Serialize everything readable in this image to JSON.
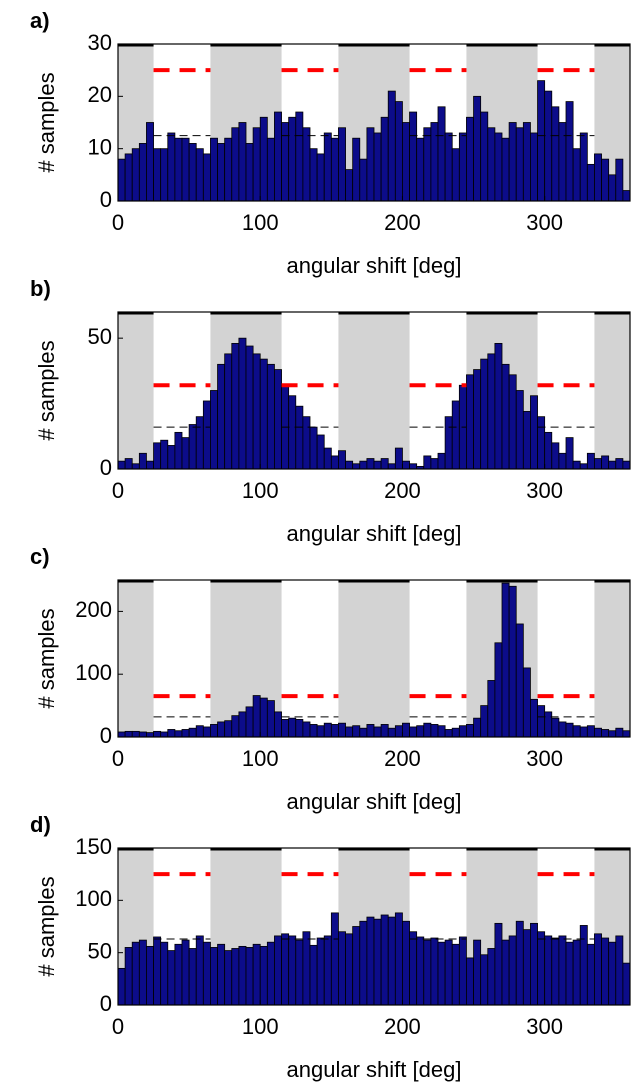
{
  "chart_data": [
    {
      "type": "histogram",
      "label": "a)",
      "xlabel": "angular shift [deg]",
      "ylabel": "# samples",
      "color": "#0c0c8a",
      "shade_color": "#d3d3d3",
      "bins": [
        0,
        5,
        10,
        15,
        20,
        25,
        30,
        35,
        40,
        45,
        50,
        55,
        60,
        65,
        70,
        75,
        80,
        85,
        90,
        95,
        100,
        105,
        110,
        115,
        120,
        125,
        130,
        135,
        140,
        145,
        150,
        155,
        160,
        165,
        170,
        175,
        180,
        185,
        190,
        195,
        200,
        205,
        210,
        215,
        220,
        225,
        230,
        235,
        240,
        245,
        250,
        255,
        260,
        265,
        270,
        275,
        280,
        285,
        290,
        295,
        300,
        305,
        310,
        315,
        320,
        325,
        330,
        335,
        340,
        345,
        350,
        355,
        360
      ],
      "values": [
        8,
        9,
        10,
        11,
        15,
        10,
        10,
        13,
        12,
        12,
        11,
        10,
        9,
        12,
        11,
        12,
        14,
        15,
        11,
        14,
        16,
        12,
        17,
        15,
        16,
        17,
        14,
        10,
        9,
        13,
        12,
        14,
        6,
        12,
        8,
        14,
        13,
        16,
        21,
        19,
        15,
        17,
        12,
        14,
        15,
        18,
        13,
        10,
        13,
        16,
        20,
        17,
        14,
        13,
        12,
        15,
        14,
        15,
        13,
        23,
        21,
        18,
        15,
        19,
        10,
        13,
        7,
        9,
        8,
        5,
        8,
        2
      ],
      "xlim": [
        0,
        360
      ],
      "ylim": [
        0,
        30
      ],
      "xticks": [
        0,
        100,
        200,
        300
      ],
      "yticks": [
        0,
        10,
        20,
        30
      ],
      "shaded_ranges": [
        [
          0,
          25
        ],
        [
          65,
          115
        ],
        [
          155,
          205
        ],
        [
          245,
          295
        ],
        [
          335,
          360
        ]
      ],
      "reference_lines": [
        {
          "value": 25,
          "color": "#ff0000"
        },
        {
          "value": 12.5,
          "color": "#000000"
        }
      ]
    },
    {
      "type": "histogram",
      "label": "b)",
      "xlabel": "angular shift [deg]",
      "ylabel": "# samples",
      "color": "#0c0c8a",
      "shade_color": "#d3d3d3",
      "bins": [
        0,
        5,
        10,
        15,
        20,
        25,
        30,
        35,
        40,
        45,
        50,
        55,
        60,
        65,
        70,
        75,
        80,
        85,
        90,
        95,
        100,
        105,
        110,
        115,
        120,
        125,
        130,
        135,
        140,
        145,
        150,
        155,
        160,
        165,
        170,
        175,
        180,
        185,
        190,
        195,
        200,
        205,
        210,
        215,
        220,
        225,
        230,
        235,
        240,
        245,
        250,
        255,
        260,
        265,
        270,
        275,
        280,
        285,
        290,
        295,
        300,
        305,
        310,
        315,
        320,
        325,
        330,
        335,
        340,
        345,
        350,
        355,
        360
      ],
      "values": [
        3,
        4,
        2,
        6,
        3,
        10,
        11,
        9,
        14,
        12,
        17,
        20,
        26,
        30,
        40,
        44,
        48,
        50,
        47,
        44,
        42,
        40,
        38,
        32,
        28,
        24,
        20,
        16,
        13,
        8,
        5,
        7,
        3,
        2,
        3,
        4,
        3,
        4,
        2,
        8,
        3,
        2,
        1,
        5,
        4,
        6,
        20,
        26,
        32,
        36,
        38,
        42,
        44,
        48,
        40,
        36,
        30,
        22,
        28,
        20,
        14,
        10,
        6,
        12,
        3,
        2,
        6,
        4,
        5,
        3,
        4,
        3
      ],
      "xlim": [
        0,
        360
      ],
      "ylim": [
        0,
        60
      ],
      "xticks": [
        0,
        100,
        200,
        300
      ],
      "yticks": [
        0,
        50
      ],
      "shaded_ranges": [
        [
          0,
          25
        ],
        [
          65,
          115
        ],
        [
          155,
          205
        ],
        [
          245,
          295
        ],
        [
          335,
          360
        ]
      ],
      "reference_lines": [
        {
          "value": 32,
          "color": "#ff0000"
        },
        {
          "value": 16,
          "color": "#000000"
        }
      ]
    },
    {
      "type": "histogram",
      "label": "c)",
      "xlabel": "angular shift [deg]",
      "ylabel": "# samples",
      "color": "#0c0c8a",
      "shade_color": "#d3d3d3",
      "bins": [
        0,
        5,
        10,
        15,
        20,
        25,
        30,
        35,
        40,
        45,
        50,
        55,
        60,
        65,
        70,
        75,
        80,
        85,
        90,
        95,
        100,
        105,
        110,
        115,
        120,
        125,
        130,
        135,
        140,
        145,
        150,
        155,
        160,
        165,
        170,
        175,
        180,
        185,
        190,
        195,
        200,
        205,
        210,
        215,
        220,
        225,
        230,
        235,
        240,
        245,
        250,
        255,
        260,
        265,
        270,
        275,
        280,
        285,
        290,
        295,
        300,
        305,
        310,
        315,
        320,
        325,
        330,
        335,
        340,
        345,
        350,
        355,
        360
      ],
      "values": [
        8,
        9,
        9,
        8,
        7,
        9,
        8,
        12,
        10,
        12,
        14,
        18,
        16,
        20,
        24,
        26,
        34,
        40,
        48,
        66,
        62,
        58,
        40,
        28,
        30,
        28,
        24,
        20,
        18,
        22,
        20,
        22,
        16,
        18,
        14,
        20,
        16,
        20,
        14,
        18,
        22,
        16,
        18,
        22,
        20,
        18,
        12,
        14,
        18,
        20,
        30,
        50,
        90,
        150,
        245,
        240,
        180,
        110,
        60,
        50,
        40,
        30,
        24,
        22,
        18,
        16,
        18,
        14,
        12,
        10,
        14,
        10
      ],
      "xlim": [
        0,
        360
      ],
      "ylim": [
        0,
        250
      ],
      "xticks": [
        0,
        100,
        200,
        300
      ],
      "yticks": [
        0,
        100,
        200
      ],
      "shaded_ranges": [
        [
          0,
          25
        ],
        [
          65,
          115
        ],
        [
          155,
          205
        ],
        [
          245,
          295
        ],
        [
          335,
          360
        ]
      ],
      "reference_lines": [
        {
          "value": 65,
          "color": "#ff0000"
        },
        {
          "value": 32,
          "color": "#000000"
        }
      ]
    },
    {
      "type": "histogram",
      "label": "d)",
      "xlabel": "angular shift [deg]",
      "ylabel": "# samples",
      "color": "#0c0c8a",
      "shade_color": "#d3d3d3",
      "bins": [
        0,
        5,
        10,
        15,
        20,
        25,
        30,
        35,
        40,
        45,
        50,
        55,
        60,
        65,
        70,
        75,
        80,
        85,
        90,
        95,
        100,
        105,
        110,
        115,
        120,
        125,
        130,
        135,
        140,
        145,
        150,
        155,
        160,
        165,
        170,
        175,
        180,
        185,
        190,
        195,
        200,
        205,
        210,
        215,
        220,
        225,
        230,
        235,
        240,
        245,
        250,
        255,
        260,
        265,
        270,
        275,
        280,
        285,
        290,
        295,
        300,
        305,
        310,
        315,
        320,
        325,
        330,
        335,
        340,
        345,
        350,
        355,
        360
      ],
      "values": [
        35,
        55,
        60,
        62,
        56,
        65,
        60,
        52,
        58,
        62,
        54,
        66,
        60,
        55,
        58,
        52,
        54,
        56,
        55,
        58,
        56,
        60,
        66,
        68,
        66,
        62,
        70,
        57,
        64,
        66,
        88,
        70,
        68,
        75,
        80,
        84,
        82,
        86,
        84,
        88,
        80,
        70,
        65,
        62,
        64,
        60,
        62,
        58,
        65,
        45,
        62,
        48,
        54,
        78,
        62,
        66,
        80,
        72,
        78,
        70,
        66,
        64,
        66,
        60,
        62,
        76,
        58,
        68,
        64,
        60,
        66,
        40
      ],
      "xlim": [
        0,
        360
      ],
      "ylim": [
        0,
        150
      ],
      "xticks": [
        0,
        100,
        200,
        300
      ],
      "yticks": [
        0,
        50,
        100,
        150
      ],
      "shaded_ranges": [
        [
          0,
          25
        ],
        [
          65,
          115
        ],
        [
          155,
          205
        ],
        [
          245,
          295
        ],
        [
          335,
          360
        ]
      ],
      "reference_lines": [
        {
          "value": 125,
          "color": "#ff0000"
        },
        {
          "value": 63,
          "color": "#000000"
        }
      ]
    }
  ]
}
